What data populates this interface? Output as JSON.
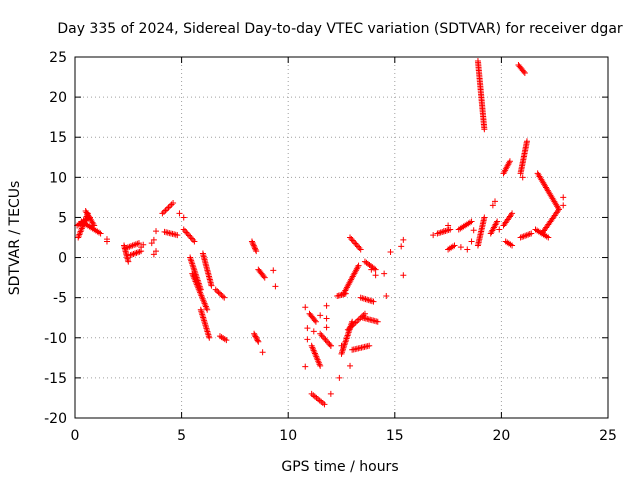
{
  "chart_data": {
    "type": "scatter",
    "title": "Day 335 of 2024, Sidereal Day-to-day VTEC variation (SDTVAR) for receiver dgar",
    "xlabel": "GPS time / hours",
    "ylabel": "SDTVAR / TECUs",
    "xlim": [
      0,
      25
    ],
    "ylim": [
      -20,
      25
    ],
    "xticks": [
      0,
      5,
      10,
      15,
      20,
      25
    ],
    "yticks": [
      -20,
      -15,
      -10,
      -5,
      0,
      5,
      10,
      15,
      20,
      25
    ],
    "grid": true,
    "marker": "+",
    "color": "#ff0000",
    "series": [
      {
        "name": "SDTVAR",
        "segments": [
          {
            "x0": 0.15,
            "x1": 0.6,
            "y0": 2.5,
            "y1": 5.5
          },
          {
            "x0": 0.3,
            "x1": 1.2,
            "y0": 4.5,
            "y1": 3.0
          },
          {
            "x0": 0.5,
            "x1": 0.9,
            "y0": 5.8,
            "y1": 4.0
          },
          {
            "x0": 0.1,
            "x1": 0.7,
            "y0": 4.0,
            "y1": 5.0
          },
          {
            "x0": 2.3,
            "x1": 2.5,
            "y0": 1.5,
            "y1": -0.5
          },
          {
            "x0": 2.4,
            "x1": 3.0,
            "y0": 1.2,
            "y1": 1.8
          },
          {
            "x0": 2.6,
            "x1": 3.1,
            "y0": 0.3,
            "y1": 0.8
          },
          {
            "x0": 4.1,
            "x1": 4.6,
            "y0": 5.5,
            "y1": 6.8
          },
          {
            "x0": 4.2,
            "x1": 4.8,
            "y0": 3.2,
            "y1": 2.8
          },
          {
            "x0": 5.1,
            "x1": 5.6,
            "y0": 3.5,
            "y1": 2.0
          },
          {
            "x0": 5.4,
            "x1": 5.9,
            "y0": 0.0,
            "y1": -4.0
          },
          {
            "x0": 5.5,
            "x1": 6.2,
            "y0": -2.0,
            "y1": -6.5
          },
          {
            "x0": 5.9,
            "x1": 6.3,
            "y0": -6.5,
            "y1": -10.0
          },
          {
            "x0": 6.0,
            "x1": 6.4,
            "y0": 0.5,
            "y1": -3.5
          },
          {
            "x0": 6.6,
            "x1": 7.0,
            "y0": -4.0,
            "y1": -5.0
          },
          {
            "x0": 6.8,
            "x1": 7.1,
            "y0": -9.8,
            "y1": -10.3
          },
          {
            "x0": 8.3,
            "x1": 8.5,
            "y0": 2.0,
            "y1": 0.8
          },
          {
            "x0": 8.4,
            "x1": 8.6,
            "y0": -9.5,
            "y1": -10.5
          },
          {
            "x0": 8.6,
            "x1": 8.9,
            "y0": -1.5,
            "y1": -2.5
          },
          {
            "x0": 11.0,
            "x1": 11.3,
            "y0": -7.0,
            "y1": -8.0
          },
          {
            "x0": 11.1,
            "x1": 11.5,
            "y0": -11.0,
            "y1": -13.5
          },
          {
            "x0": 11.1,
            "x1": 11.7,
            "y0": -17.0,
            "y1": -18.3
          },
          {
            "x0": 11.5,
            "x1": 12.0,
            "y0": -9.5,
            "y1": -11.0
          },
          {
            "x0": 12.3,
            "x1": 12.7,
            "y0": -4.8,
            "y1": -4.5
          },
          {
            "x0": 12.5,
            "x1": 13.0,
            "y0": -12.0,
            "y1": -8.0
          },
          {
            "x0": 12.6,
            "x1": 13.3,
            "y0": -4.5,
            "y1": -1.0
          },
          {
            "x0": 12.8,
            "x1": 13.6,
            "y0": -9.0,
            "y1": -7.0
          },
          {
            "x0": 12.9,
            "x1": 13.4,
            "y0": 2.5,
            "y1": 1.0
          },
          {
            "x0": 13.0,
            "x1": 13.8,
            "y0": -11.5,
            "y1": -11.0
          },
          {
            "x0": 13.4,
            "x1": 14.0,
            "y0": -5.0,
            "y1": -5.5
          },
          {
            "x0": 13.5,
            "x1": 14.2,
            "y0": -7.5,
            "y1": -8.0
          },
          {
            "x0": 13.6,
            "x1": 14.1,
            "y0": -0.5,
            "y1": -1.5
          },
          {
            "x0": 17.0,
            "x1": 17.6,
            "y0": 3.0,
            "y1": 3.5
          },
          {
            "x0": 17.5,
            "x1": 17.8,
            "y0": 1.0,
            "y1": 1.5
          },
          {
            "x0": 18.0,
            "x1": 18.6,
            "y0": 3.5,
            "y1": 4.5
          },
          {
            "x0": 18.9,
            "x1": 19.2,
            "y0": 24.5,
            "y1": 16.0
          },
          {
            "x0": 18.9,
            "x1": 19.2,
            "y0": 1.5,
            "y1": 5.0
          },
          {
            "x0": 19.5,
            "x1": 19.8,
            "y0": 3.0,
            "y1": 4.5
          },
          {
            "x0": 20.1,
            "x1": 20.4,
            "y0": 10.5,
            "y1": 12.0
          },
          {
            "x0": 20.1,
            "x1": 20.5,
            "y0": 4.0,
            "y1": 5.5
          },
          {
            "x0": 20.2,
            "x1": 20.5,
            "y0": 2.0,
            "y1": 1.5
          },
          {
            "x0": 20.8,
            "x1": 21.1,
            "y0": 24.0,
            "y1": 23.0
          },
          {
            "x0": 20.9,
            "x1": 21.2,
            "y0": 10.5,
            "y1": 14.5
          },
          {
            "x0": 20.9,
            "x1": 21.4,
            "y0": 2.5,
            "y1": 3.0
          },
          {
            "x0": 21.6,
            "x1": 22.2,
            "y0": 3.5,
            "y1": 2.5
          },
          {
            "x0": 21.7,
            "x1": 22.7,
            "y0": 10.5,
            "y1": 6.0
          },
          {
            "x0": 21.9,
            "x1": 22.7,
            "y0": 3.0,
            "y1": 6.0
          }
        ],
        "points": [
          [
            1.5,
            2.3
          ],
          [
            1.5,
            2.0
          ],
          [
            3.1,
            1.3
          ],
          [
            3.2,
            1.6
          ],
          [
            3.8,
            3.3
          ],
          [
            3.7,
            2.2
          ],
          [
            3.6,
            1.8
          ],
          [
            3.7,
            0.4
          ],
          [
            3.8,
            0.8
          ],
          [
            4.9,
            5.5
          ],
          [
            5.1,
            5.0
          ],
          [
            8.8,
            -11.8
          ],
          [
            9.3,
            -1.6
          ],
          [
            9.4,
            -3.6
          ],
          [
            10.8,
            -6.2
          ],
          [
            10.9,
            -8.8
          ],
          [
            10.9,
            -10.2
          ],
          [
            10.8,
            -13.6
          ],
          [
            11.2,
            -9.2
          ],
          [
            11.5,
            -7.2
          ],
          [
            11.8,
            -6.0
          ],
          [
            11.8,
            -7.6
          ],
          [
            11.8,
            -8.7
          ],
          [
            12.0,
            -11.0
          ],
          [
            12.0,
            -17.0
          ],
          [
            12.5,
            -11.0
          ],
          [
            12.4,
            -15.0
          ],
          [
            12.9,
            -13.5
          ],
          [
            13.9,
            -1.5
          ],
          [
            14.1,
            -2.2
          ],
          [
            14.5,
            -2.0
          ],
          [
            14.6,
            -4.8
          ],
          [
            14.8,
            0.7
          ],
          [
            15.3,
            1.4
          ],
          [
            15.4,
            2.2
          ],
          [
            15.4,
            -2.2
          ],
          [
            16.8,
            2.8
          ],
          [
            17.3,
            3.3
          ],
          [
            17.5,
            4.0
          ],
          [
            18.1,
            1.3
          ],
          [
            18.4,
            1.0
          ],
          [
            18.6,
            2.0
          ],
          [
            18.7,
            3.4
          ],
          [
            19.6,
            6.5
          ],
          [
            19.7,
            7.0
          ],
          [
            19.9,
            3.5
          ],
          [
            21.0,
            10.0
          ],
          [
            22.9,
            6.5
          ],
          [
            22.9,
            7.5
          ]
        ]
      }
    ]
  }
}
